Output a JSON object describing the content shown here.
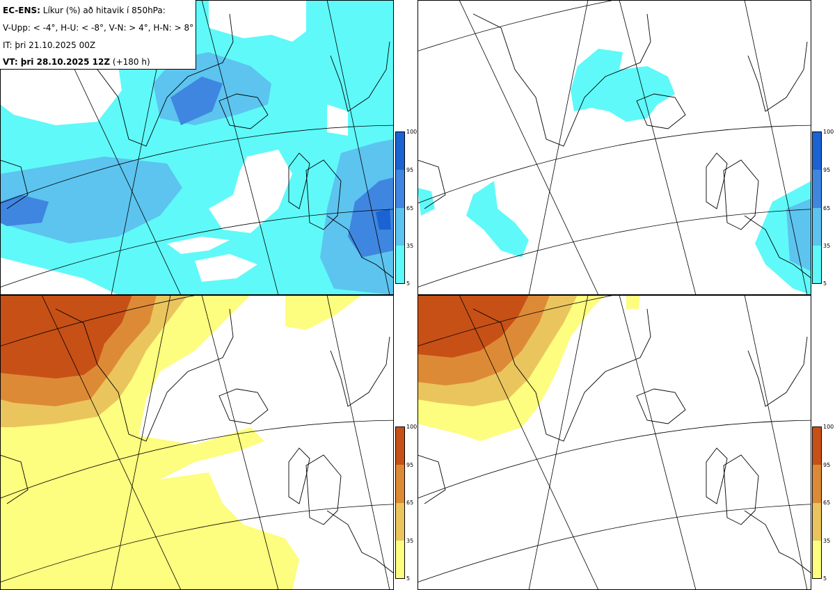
{
  "info": {
    "line1_bold": "EC-ENS:",
    "line1_rest": "Líkur (%) að hitavik í 850hPa:",
    "line2": "V-Upp: < -4°, H-U: < -8°, V-N: > 4°, H-N: > 8°",
    "line3": "IT: þri 21.10.2025 00Z",
    "line4_bold": "VT: þri 28.10.2025 12Z",
    "line4_rest": "(+180 h)"
  },
  "colorbars": {
    "ticks": [
      "100",
      "95",
      "65",
      "35",
      "5"
    ],
    "cold_colors": [
      "#1b63d2",
      "#3f86e0",
      "#5cc4ef",
      "#5ff9f9"
    ],
    "warm_colors": [
      "#c75016",
      "#dd8a36",
      "#eac55d",
      "#fdfd7f"
    ]
  },
  "panels": [
    {
      "name": "cold-minus-4",
      "scheme": "cold"
    },
    {
      "name": "cold-minus-8",
      "scheme": "cold"
    },
    {
      "name": "warm-plus-4",
      "scheme": "warm"
    },
    {
      "name": "warm-plus-8",
      "scheme": "warm"
    }
  ]
}
